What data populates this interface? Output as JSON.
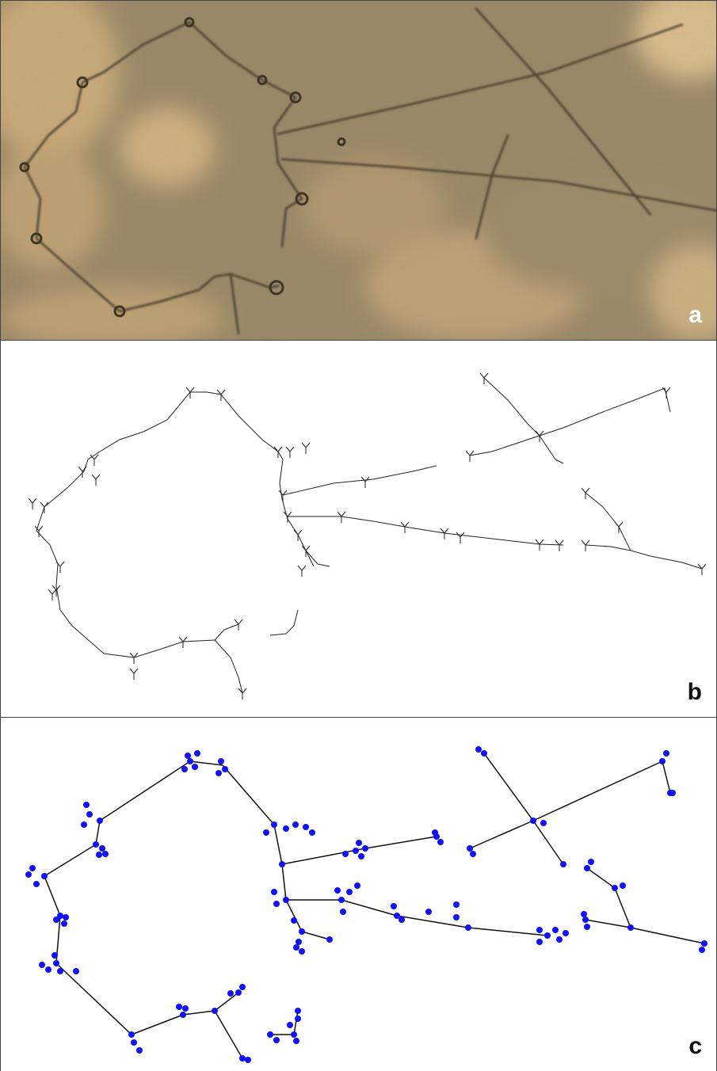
{
  "figure": {
    "panels": [
      {
        "id": "a",
        "label": "a",
        "content": "aerial-photograph"
      },
      {
        "id": "b",
        "label": "b",
        "content": "skeleton"
      },
      {
        "id": "c",
        "label": "c",
        "content": "graph"
      }
    ]
  },
  "colors": {
    "ground_dark": "#8a7a5c",
    "ground_light": "#c9a877",
    "sand_patch": "#e4c596",
    "wall_line": "#4b3f2e",
    "skeleton_line": "#222222",
    "graph_edge": "#111111",
    "graph_node": "#1010ff",
    "background": "#ffffff"
  }
}
